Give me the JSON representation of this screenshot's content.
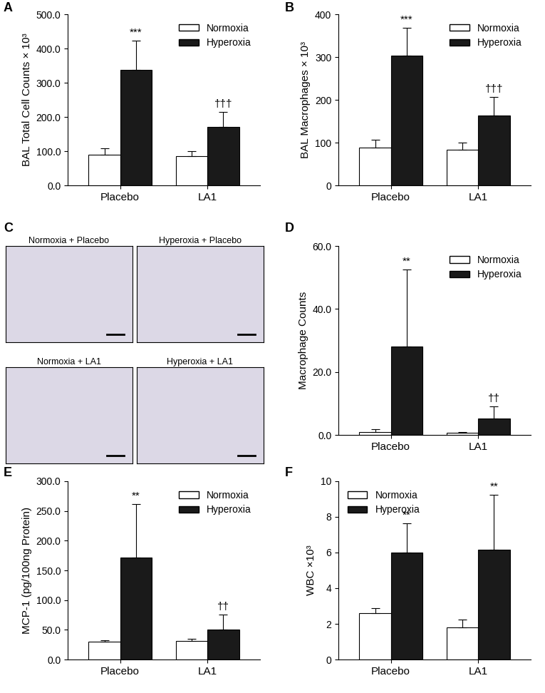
{
  "chart_data": [
    {
      "type": "bar",
      "panel": "A",
      "ylabel": "BAL Total Cell Counts × 10³",
      "categories": [
        "Placebo",
        "LA1"
      ],
      "series": [
        {
          "name": "Normoxia",
          "color": "#ffffff",
          "values": [
            90,
            85
          ],
          "errors": [
            18,
            15
          ]
        },
        {
          "name": "Hyperoxia",
          "color": "#1a1a1a",
          "values": [
            338,
            170
          ],
          "errors": [
            85,
            45
          ],
          "annotations": [
            "***",
            "†††"
          ]
        }
      ],
      "ylim": [
        0,
        500
      ],
      "yticks": [
        {
          "value": 0,
          "label": "0.0"
        },
        {
          "value": 100,
          "label": "100.0"
        },
        {
          "value": 200,
          "label": "200.0"
        },
        {
          "value": 300,
          "label": "300.0"
        },
        {
          "value": 400,
          "label": "400.0"
        },
        {
          "value": 500,
          "label": "500.0"
        }
      ],
      "legend": "upper right"
    },
    {
      "type": "bar",
      "panel": "B",
      "ylabel": "BAL Macrophages × 10³",
      "categories": [
        "Placebo",
        "LA1"
      ],
      "series": [
        {
          "name": "Normoxia",
          "color": "#ffffff",
          "values": [
            88,
            83
          ],
          "errors": [
            18,
            17
          ]
        },
        {
          "name": "Hyperoxia",
          "color": "#1a1a1a",
          "values": [
            303,
            163
          ],
          "errors": [
            65,
            43
          ],
          "annotations": [
            "***",
            "†††"
          ]
        }
      ],
      "ylim": [
        0,
        400
      ],
      "yticks": [
        0,
        100,
        200,
        300,
        400
      ],
      "legend": "upper right"
    },
    {
      "type": "image",
      "panel": "C",
      "images": [
        {
          "title": "Normoxia + Placebo"
        },
        {
          "title": "Hyperoxia + Placebo"
        },
        {
          "title": "Normoxia + LA1"
        },
        {
          "title": "Hyperoxia + LA1"
        }
      ]
    },
    {
      "type": "bar",
      "panel": "D",
      "ylabel": "Macrophage Counts",
      "categories": [
        "Placebo",
        "LA1"
      ],
      "series": [
        {
          "name": "Normoxia",
          "color": "#ffffff",
          "values": [
            1.0,
            0.6
          ],
          "errors": [
            0.8,
            0.3
          ]
        },
        {
          "name": "Hyperoxia",
          "color": "#1a1a1a",
          "values": [
            28,
            5.3
          ],
          "errors": [
            24.5,
            3.8
          ],
          "annotations": [
            "**",
            "††"
          ]
        }
      ],
      "ylim": [
        0,
        60
      ],
      "yticks": [
        {
          "value": 0,
          "label": "0.0"
        },
        {
          "value": 20,
          "label": "20.0"
        },
        {
          "value": 40,
          "label": "40.0"
        },
        {
          "value": 60,
          "label": "60.0"
        }
      ],
      "legend": "upper right"
    },
    {
      "type": "bar",
      "panel": "E",
      "ylabel": "MCP-1 (pg/100ng Protein)",
      "categories": [
        "Placebo",
        "LA1"
      ],
      "series": [
        {
          "name": "Normoxia",
          "color": "#ffffff",
          "values": [
            30,
            31
          ],
          "errors": [
            3,
            4
          ]
        },
        {
          "name": "Hyperoxia",
          "color": "#1a1a1a",
          "values": [
            172,
            51
          ],
          "errors": [
            90,
            25
          ],
          "annotations": [
            "**",
            "††"
          ]
        }
      ],
      "ylim": [
        0,
        300
      ],
      "yticks": [
        {
          "value": 0,
          "label": "0.0"
        },
        {
          "value": 50,
          "label": "50.0"
        },
        {
          "value": 100,
          "label": "100.0"
        },
        {
          "value": 150,
          "label": "150.0"
        },
        {
          "value": 200,
          "label": "200.0"
        },
        {
          "value": 250,
          "label": "250.0"
        },
        {
          "value": 300,
          "label": "300.0"
        }
      ],
      "legend": "upper right"
    },
    {
      "type": "bar",
      "panel": "F",
      "ylabel": "WBC ×10³",
      "categories": [
        "Placebo",
        "LA1"
      ],
      "series": [
        {
          "name": "Normoxia",
          "color": "#ffffff",
          "values": [
            2.6,
            1.8
          ],
          "errors": [
            0.3,
            0.45
          ]
        },
        {
          "name": "Hyperoxia",
          "color": "#1a1a1a",
          "values": [
            6.0,
            6.15
          ],
          "errors": [
            1.65,
            3.1
          ],
          "annotations": [
            "**",
            "**"
          ]
        }
      ],
      "ylim": [
        0,
        10
      ],
      "yticks": [
        0,
        2,
        4,
        6,
        8,
        10
      ],
      "legend": "upper left"
    }
  ]
}
